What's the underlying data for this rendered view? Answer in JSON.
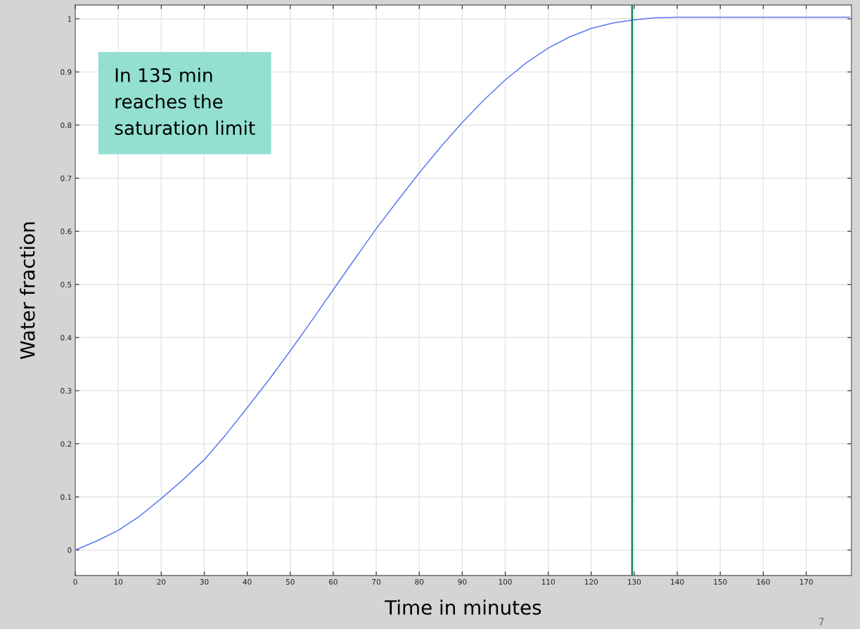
{
  "chart_data": {
    "type": "line",
    "xlabel": "Time in minutes",
    "ylabel": "Water fraction",
    "x": [
      0,
      5,
      10,
      15,
      20,
      25,
      30,
      35,
      40,
      45,
      50,
      55,
      60,
      65,
      70,
      75,
      80,
      85,
      90,
      95,
      100,
      105,
      110,
      115,
      120,
      125,
      130,
      135,
      140,
      150,
      160,
      170,
      180
    ],
    "series": [
      {
        "color": "#5b78f0",
        "values": [
          0,
          0.017,
          0.037,
          0.064,
          0.097,
          0.132,
          0.17,
          0.217,
          0.268,
          0.32,
          0.375,
          0.432,
          0.49,
          0.548,
          0.605,
          0.658,
          0.71,
          0.759,
          0.805,
          0.847,
          0.885,
          0.918,
          0.945,
          0.966,
          0.982,
          0.992,
          0.998,
          1.002,
          1.003,
          1.003,
          1.003,
          1.003,
          1.003
        ]
      }
    ],
    "xlim": [
      0,
      180.5
    ],
    "ylim": [
      -0.048,
      1.026
    ],
    "xticks": [
      0,
      10,
      20,
      30,
      40,
      50,
      60,
      70,
      80,
      90,
      100,
      110,
      120,
      130,
      140,
      150,
      160,
      170
    ],
    "yticks": [
      0,
      0.1,
      0.2,
      0.3,
      0.4,
      0.5,
      0.6,
      0.7,
      0.8,
      0.9,
      1
    ],
    "grid": true,
    "marker": "none",
    "line_style": "solid",
    "ref_lines": [
      {
        "axis": "x",
        "value": 129.5,
        "color": "#127d63",
        "line_style": "solid"
      }
    ],
    "annotations": [
      "In 135 min\nreaches the\nsaturation limit",
      "7"
    ]
  }
}
